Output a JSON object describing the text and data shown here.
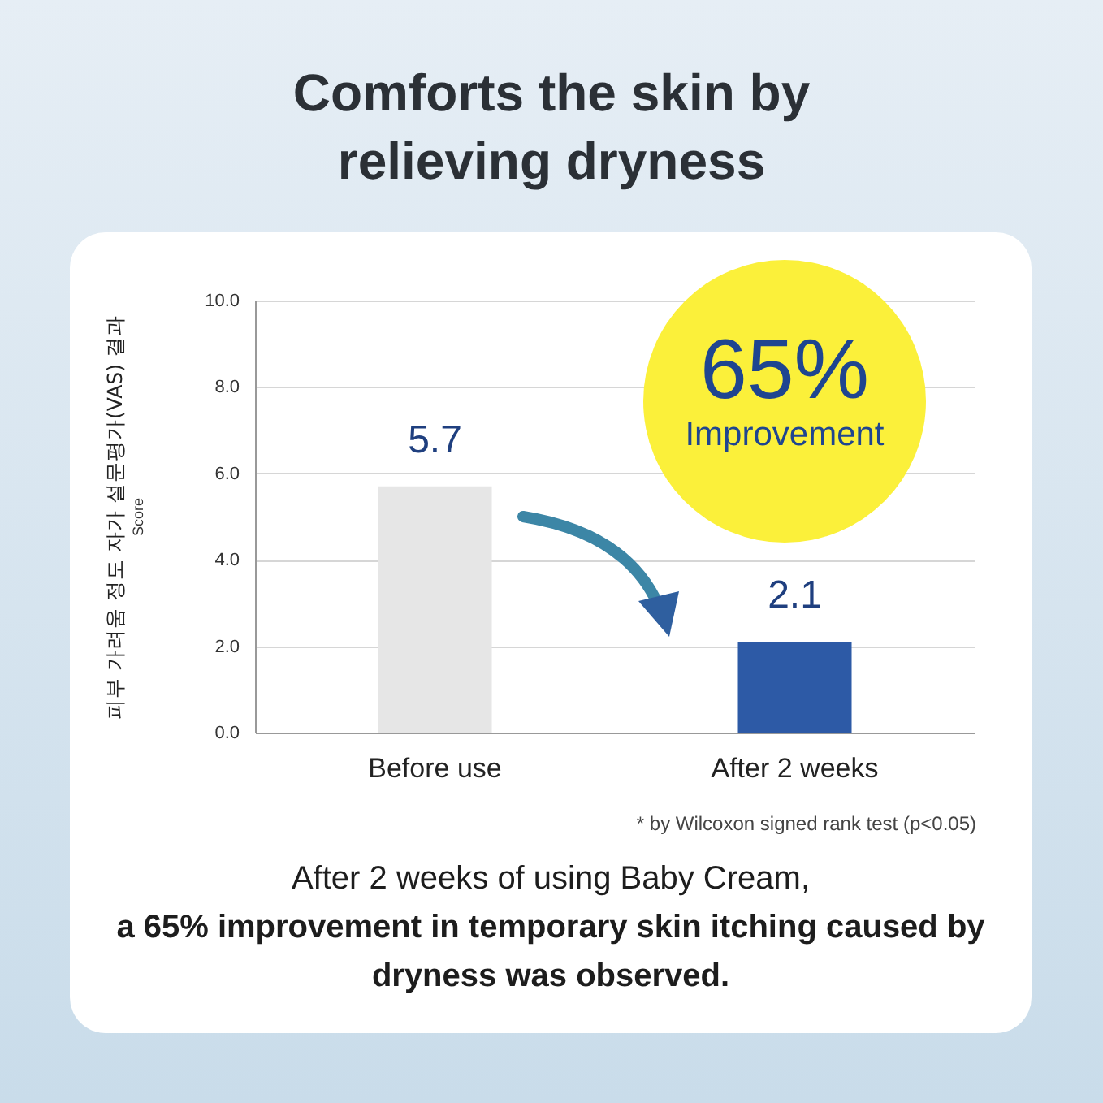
{
  "chart_data": {
    "type": "bar",
    "title": "Comforts the skin by relieving dryness",
    "ylabel": "피부 가려움 정도 자가 설문평가(VAS) 결과",
    "categories": [
      "Before use",
      "After 2 weeks"
    ],
    "values": [
      5.7,
      2.1
    ],
    "colors": [
      "#e6e6e6",
      "#2d5aa6"
    ],
    "ylim": [
      0,
      10
    ],
    "yticks": [
      {
        "value": 0,
        "label": "0.0"
      },
      {
        "value": 2,
        "label": "2.0"
      },
      {
        "value": 4,
        "label": "4.0"
      },
      {
        "value": 6,
        "label": "6.0"
      },
      {
        "value": 8,
        "label": "8.0"
      },
      {
        "value": 10,
        "label": "10.0"
      }
    ],
    "grid": "y",
    "data_labels": true,
    "annotations": [
      "65%",
      "Improvement",
      "Score",
      "* by Wilcoxon signed rank test (p<0.05)",
      "After 2 weeks of using Baby Cream,",
      "a 65% improvement in temporary skin itching caused by dryness was observed."
    ]
  }
}
